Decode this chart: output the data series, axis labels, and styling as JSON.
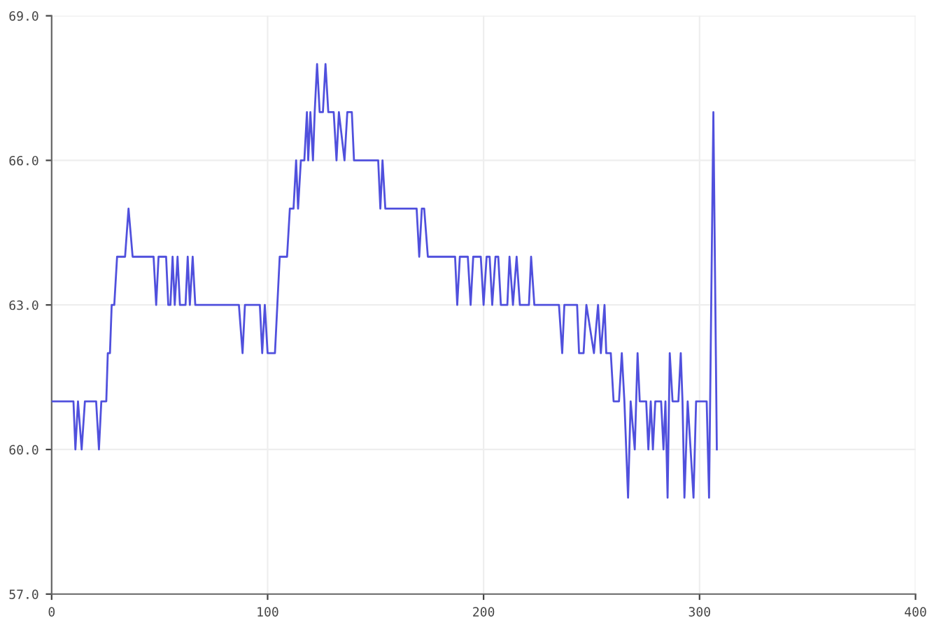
{
  "chart_data": {
    "type": "line",
    "x": [
      0,
      10.1,
      11,
      12.2,
      13.9,
      15.4,
      20.6,
      21.9,
      23,
      25.3,
      26,
      27,
      27.8,
      29,
      30.3,
      34,
      35.6,
      37.5,
      47.2,
      48.4,
      49.5,
      53,
      54,
      55,
      56,
      57,
      58.3,
      59.4,
      62,
      63,
      64,
      65.3,
      66.5,
      86.7,
      88.4,
      89.5,
      96.4,
      97.5,
      98.7,
      100,
      103.4,
      105.6,
      109,
      110.3,
      112,
      113.2,
      114.1,
      115.4,
      117,
      118.2,
      118.8,
      119.8,
      121,
      121.8,
      122.9,
      124.1,
      125.6,
      126.8,
      128.1,
      130.6,
      131.9,
      133,
      135.6,
      136.9,
      139,
      140,
      151.2,
      152.2,
      153.2,
      154.5,
      169,
      170.2,
      171.4,
      172.5,
      174.2,
      186.8,
      187.8,
      189,
      192.7,
      194,
      195.2,
      198.7,
      200,
      201.4,
      202.8,
      204,
      205.5,
      206.8,
      208,
      211,
      212,
      213.6,
      215.3,
      216.8,
      221,
      222,
      223.5,
      234.9,
      236.4,
      237.4,
      243.3,
      244.2,
      246.3,
      247.6,
      251.1,
      253,
      254.3,
      256,
      256.8,
      258.9,
      260.2,
      262.7,
      264,
      265.2,
      266.9,
      268.1,
      270,
      271.3,
      272.3,
      275.3,
      276.3,
      277.4,
      278.4,
      279.5,
      282.2,
      283.3,
      284.2,
      285.2,
      286.2,
      287.5,
      290.2,
      291.3,
      292.1,
      293,
      294.5,
      297.2,
      298.4,
      303.3,
      304.4,
      306.4,
      308
    ],
    "values": [
      61,
      61,
      60,
      61,
      60,
      61,
      61,
      60,
      61,
      61,
      62,
      62,
      63,
      63,
      64,
      64,
      65,
      64,
      64,
      63,
      64,
      64,
      63,
      63,
      64,
      63,
      64,
      63,
      63,
      64,
      63,
      64,
      63,
      63,
      62,
      63,
      63,
      62,
      63,
      62,
      62,
      64,
      64,
      65,
      65,
      66,
      65,
      66,
      66,
      67,
      66,
      67,
      66,
      67,
      68,
      67,
      67,
      68,
      67,
      67,
      66,
      67,
      66,
      67,
      67,
      66,
      66,
      65,
      66,
      65,
      65,
      64,
      65,
      65,
      64,
      64,
      63,
      64,
      64,
      63,
      64,
      64,
      63,
      64,
      64,
      63,
      64,
      64,
      63,
      63,
      64,
      63,
      64,
      63,
      63,
      64,
      63,
      63,
      62,
      63,
      63,
      62,
      62,
      63,
      62,
      63,
      62,
      63,
      62,
      62,
      61,
      61,
      62,
      61,
      59,
      61,
      60,
      62,
      61,
      61,
      60,
      61,
      60,
      61,
      61,
      60,
      61,
      59,
      62,
      61,
      61,
      62,
      61,
      59,
      61,
      59,
      61,
      61,
      59,
      67,
      60
    ],
    "color": "#5050dd",
    "xlim": [
      0,
      400
    ],
    "xticks": [
      0,
      100,
      200,
      300,
      400
    ],
    "ylim": [
      57,
      69
    ],
    "yticks": [
      {
        "value": 57,
        "label": "57.0"
      },
      {
        "value": 60,
        "label": "60.0"
      },
      {
        "value": 63,
        "label": "63.0"
      },
      {
        "value": 66,
        "label": "66.0"
      },
      {
        "value": 69,
        "label": "69.0"
      }
    ],
    "grid": true,
    "marker": "none",
    "line_style": "solid"
  }
}
